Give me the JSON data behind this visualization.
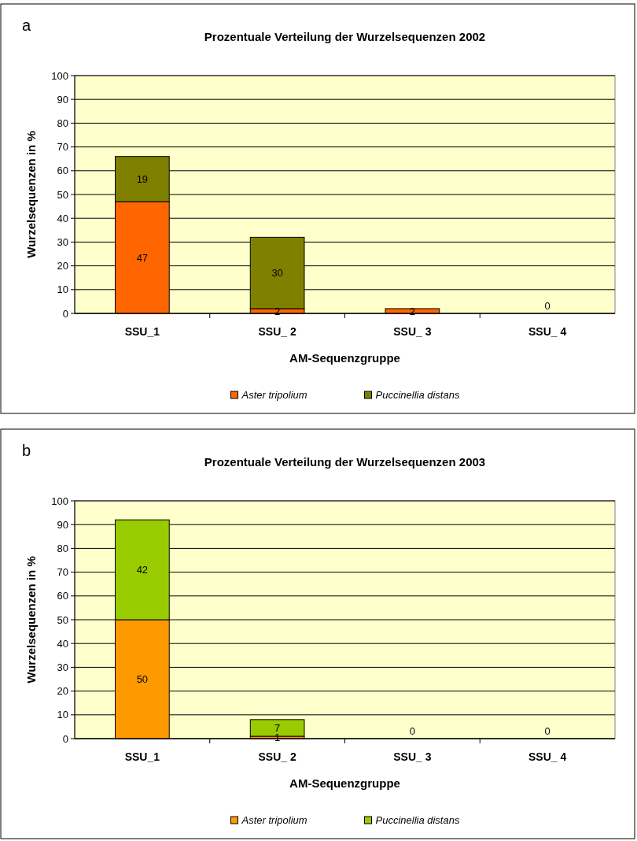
{
  "chart_data": [
    {
      "type": "bar",
      "title": "Prozentuale Verteilung der Wurzelsequenzen 2002",
      "annotations": [
        "a"
      ],
      "xlabel": "AM-Sequenzgruppe",
      "ylabel": "Wurzelsequenzen in %",
      "categories": [
        "SSU_1",
        "SSU_ 2",
        "SSU_ 3",
        "SSU_ 4"
      ],
      "stacked": true,
      "ylim": [
        0,
        100
      ],
      "yticks": [
        0,
        10,
        20,
        30,
        40,
        50,
        60,
        70,
        80,
        90,
        100
      ],
      "grid": "y",
      "legend": "bottom",
      "series": [
        {
          "name": "Aster tripolium",
          "color": "#ff6600",
          "values": [
            47,
            2,
            2,
            0
          ],
          "value_labels": [
            "47",
            "2",
            "2",
            null
          ]
        },
        {
          "name": "Puccinellia distans",
          "color": "#808000",
          "values": [
            19,
            30,
            0,
            0
          ],
          "value_labels": [
            "19",
            "30",
            null,
            "0"
          ]
        }
      ]
    },
    {
      "type": "bar",
      "title": "Prozentuale Verteilung der Wurzelsequenzen 2003",
      "annotations": [
        "b"
      ],
      "xlabel": "AM-Sequenzgruppe",
      "ylabel": "Wurzelsequenzen in %",
      "categories": [
        "SSU_1",
        "SSU_ 2",
        "SSU_ 3",
        "SSU_ 4"
      ],
      "stacked": true,
      "ylim": [
        0,
        100
      ],
      "yticks": [
        0,
        10,
        20,
        30,
        40,
        50,
        60,
        70,
        80,
        90,
        100
      ],
      "grid": "y",
      "legend": "bottom",
      "series": [
        {
          "name": "Aster tripolium",
          "color": "#ff9900",
          "values": [
            50,
            1,
            0,
            0
          ],
          "value_labels": [
            "50",
            "1",
            "0",
            "0"
          ]
        },
        {
          "name": "Puccinellia distans",
          "color": "#99cc00",
          "values": [
            42,
            7,
            0,
            0
          ],
          "value_labels": [
            "42",
            "7",
            null,
            null
          ]
        }
      ]
    }
  ]
}
